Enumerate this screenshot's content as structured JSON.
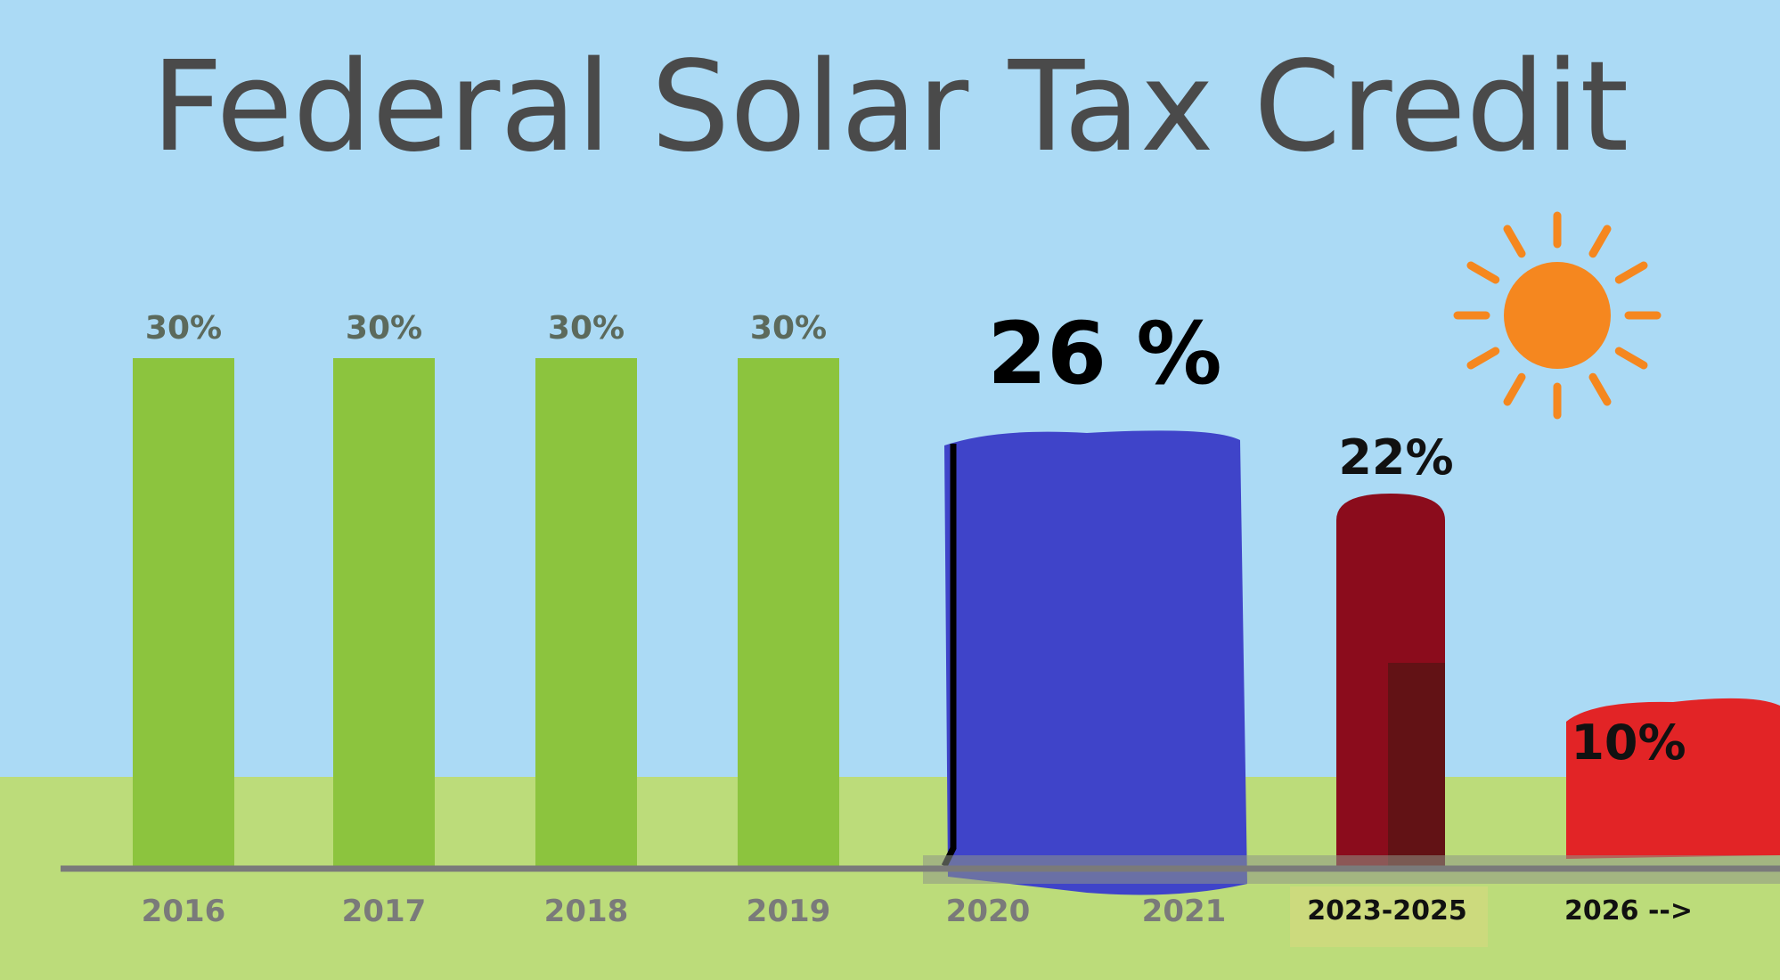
{
  "chart_data": {
    "type": "bar",
    "title": "Federal Solar Tax Credit",
    "xlabel": "",
    "ylabel": "",
    "ylim": [
      0,
      40
    ],
    "grid": false,
    "categories": [
      "2016",
      "2017",
      "2018",
      "2019",
      "2020",
      "2021",
      "2023-2025",
      "2026 -->"
    ],
    "values": [
      30,
      30,
      30,
      30,
      26,
      26,
      22,
      10
    ],
    "value_labels": [
      "30%",
      "30%",
      "30%",
      "30%",
      "26 %",
      "",
      "22%",
      "10%"
    ],
    "colors": {
      "sky": "#abdaf5",
      "ground": "#bcdc7a",
      "green_bar": "#8cc43e",
      "blue_bar": "#3f44c9",
      "red_bar": "#8b0c1c",
      "bright_red_bar": "#e22426",
      "axis": "#7a7a7a",
      "sun": "#f5871f"
    },
    "decoration": "sun-icon"
  }
}
